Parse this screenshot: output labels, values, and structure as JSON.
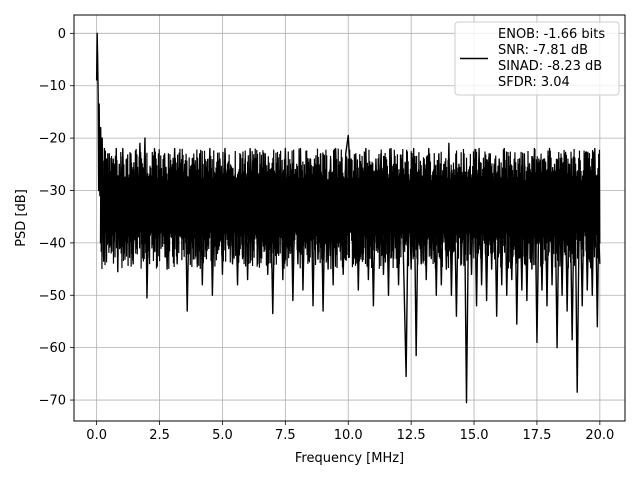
{
  "chart_data": {
    "type": "line",
    "xlabel": "Frequency [MHz]",
    "ylabel": "PSD [dB]",
    "xlim": [
      -0.9,
      21.0
    ],
    "ylim": [
      -74,
      3.5
    ],
    "xticks": [
      0.0,
      2.5,
      5.0,
      7.5,
      10.0,
      12.5,
      15.0,
      17.5,
      20.0
    ],
    "xtick_labels": [
      "0.0",
      "2.5",
      "5.0",
      "7.5",
      "10.0",
      "12.5",
      "15.0",
      "17.5",
      "20.0"
    ],
    "yticks": [
      0,
      -10,
      -20,
      -30,
      -40,
      -50,
      -60,
      -70
    ],
    "ytick_labels": [
      "0",
      "−10",
      "−20",
      "−30",
      "−40",
      "−50",
      "−60",
      "−70"
    ],
    "grid": true,
    "legend": {
      "placement": "top-right",
      "lines": [
        "ENOB: -1.66 bits",
        "SNR: -7.81 dB",
        "SINAD: -8.23 dB",
        "SFDR: 3.04"
      ]
    },
    "series": [
      {
        "color": "#000000",
        "points": [
          [
            0.0,
            -9
          ],
          [
            0.02,
            0.0
          ],
          [
            0.04,
            -5
          ],
          [
            0.06,
            -12
          ],
          [
            0.08,
            -30
          ],
          [
            0.1,
            -13.5
          ],
          [
            0.13,
            -31
          ],
          [
            0.16,
            -18
          ],
          [
            0.19,
            -30
          ],
          [
            0.22,
            -20
          ],
          [
            0.25,
            -33
          ],
          [
            0.28,
            -43.5
          ],
          [
            0.31,
            -22
          ],
          [
            0.35,
            -36
          ],
          [
            0.4,
            -24
          ],
          [
            0.45,
            -38
          ],
          [
            0.5,
            -23
          ],
          [
            0.55,
            -30
          ],
          [
            0.6,
            -36
          ],
          [
            0.66,
            -24
          ],
          [
            0.72,
            -39
          ],
          [
            0.78,
            -22
          ],
          [
            0.84,
            -45.5
          ],
          [
            0.9,
            -25
          ],
          [
            0.97,
            -35
          ],
          [
            1.04,
            -22
          ],
          [
            1.12,
            -41
          ],
          [
            1.2,
            -24
          ],
          [
            1.28,
            -36
          ],
          [
            1.36,
            -23
          ],
          [
            1.45,
            -44
          ],
          [
            1.54,
            -26
          ],
          [
            1.63,
            -37
          ],
          [
            1.72,
            -21
          ],
          [
            1.82,
            -40
          ],
          [
            1.92,
            -20
          ],
          [
            2.0,
            -50.5
          ],
          [
            2.1,
            -27
          ],
          [
            2.2,
            -38
          ],
          [
            2.3,
            -22
          ],
          [
            2.4,
            -42
          ],
          [
            2.5,
            -26
          ],
          [
            2.6,
            -37
          ],
          [
            2.7,
            -23
          ],
          [
            2.8,
            -45
          ],
          [
            2.9,
            -27
          ],
          [
            3.0,
            -39
          ],
          [
            3.1,
            -22
          ],
          [
            3.2,
            -44
          ],
          [
            3.3,
            -24
          ],
          [
            3.4,
            -38
          ],
          [
            3.5,
            -25
          ],
          [
            3.6,
            -53
          ],
          [
            3.7,
            -27
          ],
          [
            3.8,
            -41
          ],
          [
            3.9,
            -25
          ],
          [
            4.0,
            -44
          ],
          [
            4.1,
            -23
          ],
          [
            4.2,
            -48
          ],
          [
            4.3,
            -26
          ],
          [
            4.4,
            -40
          ],
          [
            4.5,
            -22
          ],
          [
            4.6,
            -50
          ],
          [
            4.7,
            -28
          ],
          [
            4.8,
            -42
          ],
          [
            4.9,
            -24
          ],
          [
            5.0,
            -46
          ],
          [
            5.1,
            -22
          ],
          [
            5.2,
            -38
          ],
          [
            5.3,
            -26
          ],
          [
            5.4,
            -44
          ],
          [
            5.5,
            -27
          ],
          [
            5.6,
            -48
          ],
          [
            5.7,
            -25
          ],
          [
            5.8,
            -43
          ],
          [
            5.9,
            -24
          ],
          [
            6.0,
            -47
          ],
          [
            6.1,
            -22
          ],
          [
            6.2,
            -41
          ],
          [
            6.3,
            -26
          ],
          [
            6.4,
            -44
          ],
          [
            6.5,
            -25
          ],
          [
            6.6,
            -39
          ],
          [
            6.7,
            -23
          ],
          [
            6.8,
            -46
          ],
          [
            6.9,
            -26
          ],
          [
            7.0,
            -53.5
          ],
          [
            7.1,
            -27
          ],
          [
            7.2,
            -42
          ],
          [
            7.3,
            -24
          ],
          [
            7.4,
            -47
          ],
          [
            7.5,
            -22
          ],
          [
            7.6,
            -40
          ],
          [
            7.7,
            -25
          ],
          [
            7.8,
            -51
          ],
          [
            7.9,
            -26
          ],
          [
            8.0,
            -44
          ],
          [
            8.1,
            -22
          ],
          [
            8.2,
            -49
          ],
          [
            8.3,
            -27
          ],
          [
            8.4,
            -41
          ],
          [
            8.5,
            -24
          ],
          [
            8.6,
            -52
          ],
          [
            8.7,
            -25
          ],
          [
            8.8,
            -43
          ],
          [
            8.9,
            -23
          ],
          [
            9.0,
            -53
          ],
          [
            9.1,
            -26
          ],
          [
            9.2,
            -45
          ],
          [
            9.3,
            -24
          ],
          [
            9.4,
            -48
          ],
          [
            9.5,
            -22
          ],
          [
            9.6,
            -40
          ],
          [
            9.7,
            -25
          ],
          [
            9.8,
            -46
          ],
          [
            9.9,
            -23
          ],
          [
            10.0,
            -19.5
          ],
          [
            10.1,
            -28
          ],
          [
            10.2,
            -44
          ],
          [
            10.3,
            -23
          ],
          [
            10.4,
            -49
          ],
          [
            10.5,
            -25
          ],
          [
            10.6,
            -42
          ],
          [
            10.7,
            -22
          ],
          [
            10.8,
            -47
          ],
          [
            10.9,
            -26
          ],
          [
            11.0,
            -52
          ],
          [
            11.1,
            -24
          ],
          [
            11.2,
            -41
          ],
          [
            11.3,
            -23
          ],
          [
            11.4,
            -46
          ],
          [
            11.5,
            -26
          ],
          [
            11.6,
            -50
          ],
          [
            11.7,
            -22
          ],
          [
            11.8,
            -43
          ],
          [
            11.9,
            -25
          ],
          [
            12.0,
            -48
          ],
          [
            12.1,
            -24
          ],
          [
            12.2,
            -44
          ],
          [
            12.3,
            -65.5
          ],
          [
            12.4,
            -27
          ],
          [
            12.5,
            -45
          ],
          [
            12.6,
            -22
          ],
          [
            12.7,
            -61.5
          ],
          [
            12.8,
            -26
          ],
          [
            12.9,
            -44
          ],
          [
            13.0,
            -24
          ],
          [
            13.1,
            -47
          ],
          [
            13.2,
            -22
          ],
          [
            13.3,
            -43
          ],
          [
            13.4,
            -26
          ],
          [
            13.5,
            -50
          ],
          [
            13.6,
            -23
          ],
          [
            13.7,
            -48
          ],
          [
            13.8,
            -25
          ],
          [
            13.9,
            -45
          ],
          [
            14.0,
            -21
          ],
          [
            14.1,
            -50
          ],
          [
            14.2,
            -27
          ],
          [
            14.3,
            -54
          ],
          [
            14.4,
            -25
          ],
          [
            14.5,
            -44
          ],
          [
            14.6,
            -23
          ],
          [
            14.7,
            -70.5
          ],
          [
            14.8,
            -27
          ],
          [
            14.9,
            -46
          ],
          [
            15.0,
            -24
          ],
          [
            15.1,
            -52
          ],
          [
            15.2,
            -22
          ],
          [
            15.3,
            -48
          ],
          [
            15.4,
            -26
          ],
          [
            15.5,
            -51
          ],
          [
            15.6,
            -23
          ],
          [
            15.7,
            -45
          ],
          [
            15.8,
            -25
          ],
          [
            15.9,
            -54
          ],
          [
            16.0,
            -24
          ],
          [
            16.1,
            -48
          ],
          [
            16.2,
            -22
          ],
          [
            16.3,
            -50
          ],
          [
            16.4,
            -26
          ],
          [
            16.5,
            -47
          ],
          [
            16.6,
            -24
          ],
          [
            16.7,
            -55.5
          ],
          [
            16.8,
            -26
          ],
          [
            16.9,
            -49
          ],
          [
            17.0,
            -23
          ],
          [
            17.1,
            -51
          ],
          [
            17.2,
            -25
          ],
          [
            17.3,
            -45
          ],
          [
            17.4,
            -22
          ],
          [
            17.5,
            -59
          ],
          [
            17.6,
            -27
          ],
          [
            17.7,
            -49
          ],
          [
            17.8,
            -24
          ],
          [
            17.9,
            -52
          ],
          [
            18.0,
            -22
          ],
          [
            18.1,
            -48
          ],
          [
            18.2,
            -25
          ],
          [
            18.3,
            -60
          ],
          [
            18.4,
            -26
          ],
          [
            18.5,
            -50
          ],
          [
            18.6,
            -23
          ],
          [
            18.7,
            -53
          ],
          [
            18.8,
            -25
          ],
          [
            18.9,
            -58.5
          ],
          [
            19.0,
            -24
          ],
          [
            19.1,
            -68.5
          ],
          [
            19.2,
            -27
          ],
          [
            19.3,
            -52
          ],
          [
            19.4,
            -23
          ],
          [
            19.5,
            -49
          ],
          [
            19.6,
            -26
          ],
          [
            19.7,
            -50
          ],
          [
            19.8,
            -22
          ],
          [
            19.9,
            -56
          ],
          [
            19.95,
            -38
          ],
          [
            20.0,
            -44
          ]
        ]
      }
    ]
  }
}
